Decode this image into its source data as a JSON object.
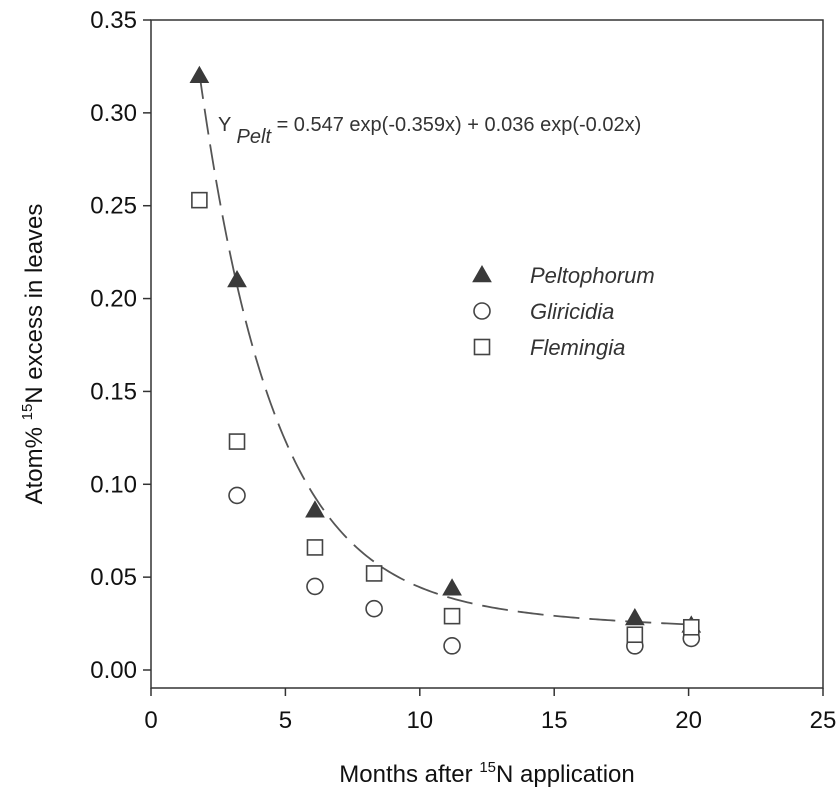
{
  "chart_data": {
    "type": "scatter",
    "title": "",
    "xlabel": {
      "pre": "Months after ",
      "sup": "15",
      "post": "N application"
    },
    "ylabel": {
      "pre": "Atom% ",
      "sup": "15",
      "post": "N excess in leaves"
    },
    "xlim": [
      0,
      25
    ],
    "ylim": [
      0,
      0.35
    ],
    "xticks": [
      0,
      5,
      10,
      15,
      20,
      25
    ],
    "xtick_labels": [
      "0",
      "5",
      "10",
      "15",
      "20",
      "25"
    ],
    "yticks": [
      0,
      0.05,
      0.1,
      0.15,
      0.2,
      0.25,
      0.3,
      0.35
    ],
    "ytick_labels": [
      "0.00",
      "0.05",
      "0.10",
      "0.15",
      "0.20",
      "0.25",
      "0.30",
      "0.35"
    ],
    "grid": false,
    "legend_position": "center-right",
    "series": [
      {
        "name": "Peltophorum",
        "marker": "filled-triangle",
        "color": "#444444",
        "x": [
          1.8,
          3.2,
          6.1,
          11.2,
          18.0,
          20.1
        ],
        "y": [
          0.32,
          0.21,
          0.086,
          0.044,
          0.028,
          0.024
        ]
      },
      {
        "name": "Gliricidia",
        "marker": "open-circle",
        "color": "#444444",
        "x": [
          3.2,
          6.1,
          8.3,
          11.2,
          18.0,
          20.1
        ],
        "y": [
          0.094,
          0.045,
          0.033,
          0.013,
          0.013,
          0.017
        ]
      },
      {
        "name": "Flemingia",
        "marker": "open-square",
        "color": "#444444",
        "x": [
          1.8,
          3.2,
          6.1,
          8.3,
          11.2,
          18.0,
          20.1
        ],
        "y": [
          0.253,
          0.123,
          0.066,
          0.052,
          0.029,
          0.019,
          0.023
        ]
      }
    ],
    "fit": {
      "equation": {
        "lead": "Y ",
        "sub": "Pelt",
        "rest": " = 0.547 exp(-0.359x) + 0.036 exp(-0.02x)"
      },
      "a": 0.547,
      "b": -0.359,
      "c": 0.036,
      "d": -0.02,
      "x_range": [
        1.8,
        20.1
      ],
      "style": "dashed"
    }
  }
}
